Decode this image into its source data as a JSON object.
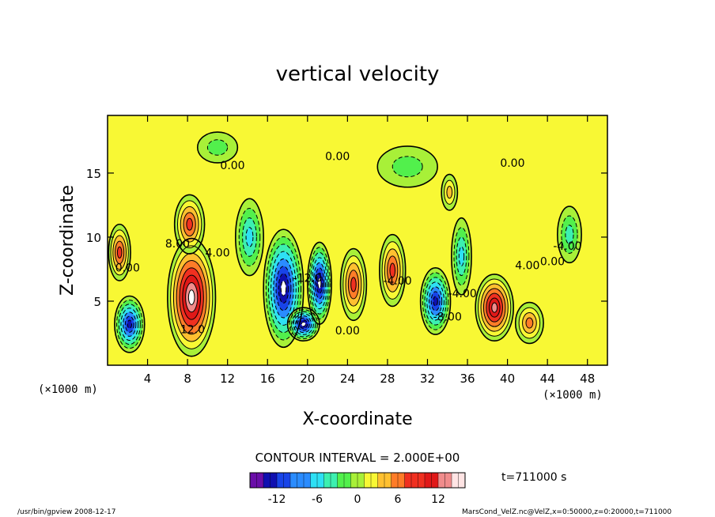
{
  "chart_data": {
    "type": "heatmap",
    "title": "vertical velocity",
    "xlabel": "X-coordinate",
    "ylabel": "Z-coordinate",
    "x_unit_note": "(×1000 m)",
    "x_unit_note_right": "(×1000 m)",
    "xlim": [
      0,
      50
    ],
    "ylim": [
      0,
      19.5
    ],
    "xticks": [
      4,
      8,
      12,
      16,
      20,
      24,
      28,
      32,
      36,
      40,
      44,
      48
    ],
    "yticks": [
      5,
      10,
      15
    ],
    "contour_interval_text": "CONTOUR INTERVAL = 2.000E+00",
    "contour_labels": [
      {
        "text": "0.00",
        "x": 2.0,
        "y": 7.3
      },
      {
        "text": "8.00",
        "x": 7.0,
        "y": 9.2
      },
      {
        "text": "4.00",
        "x": 11.0,
        "y": 8.5
      },
      {
        "text": "12.0",
        "x": 8.5,
        "y": 2.5
      },
      {
        "text": "0.00",
        "x": 12.5,
        "y": 15.3
      },
      {
        "text": "-12.0",
        "x": 20.0,
        "y": 6.5
      },
      {
        "text": "0.00",
        "x": 23.0,
        "y": 16.0
      },
      {
        "text": "0.00",
        "x": 24.0,
        "y": 2.4
      },
      {
        "text": "-4.00",
        "x": 29.0,
        "y": 6.3
      },
      {
        "text": "-8.00",
        "x": 34.0,
        "y": 3.5
      },
      {
        "text": "-4.00",
        "x": 35.5,
        "y": 5.3
      },
      {
        "text": "0.00",
        "x": 40.5,
        "y": 15.5
      },
      {
        "text": "4.00",
        "x": 42.0,
        "y": 7.5
      },
      {
        "text": "0.00",
        "x": 44.5,
        "y": 7.8
      },
      {
        "text": "-4.00",
        "x": 46.0,
        "y": 9.0
      }
    ],
    "features": [
      {
        "x": 1.2,
        "y": 8.8,
        "value": 8,
        "rx": 1.1,
        "ry": 2.2
      },
      {
        "x": 2.2,
        "y": 3.2,
        "value": -13,
        "rx": 1.5,
        "ry": 2.2
      },
      {
        "x": 8.4,
        "y": 5.3,
        "value": 15,
        "rx": 2.4,
        "ry": 4.6
      },
      {
        "x": 8.2,
        "y": 11.0,
        "value": 8,
        "rx": 1.5,
        "ry": 2.3
      },
      {
        "x": 17.6,
        "y": 6.0,
        "value": -14,
        "rx": 2.0,
        "ry": 4.6
      },
      {
        "x": 21.2,
        "y": 6.4,
        "value": -14,
        "rx": 1.2,
        "ry": 3.2
      },
      {
        "x": 19.6,
        "y": 3.2,
        "value": -14,
        "rx": 1.6,
        "ry": 1.3
      },
      {
        "x": 24.6,
        "y": 6.3,
        "value": 9,
        "rx": 1.3,
        "ry": 2.8
      },
      {
        "x": 28.5,
        "y": 7.4,
        "value": 9,
        "rx": 1.3,
        "ry": 2.8
      },
      {
        "x": 32.8,
        "y": 5.0,
        "value": -13,
        "rx": 1.5,
        "ry": 2.6
      },
      {
        "x": 35.4,
        "y": 8.5,
        "value": -6,
        "rx": 1.0,
        "ry": 3.0
      },
      {
        "x": 38.7,
        "y": 4.5,
        "value": 12,
        "rx": 1.9,
        "ry": 2.6
      },
      {
        "x": 42.2,
        "y": 3.3,
        "value": 7,
        "rx": 1.4,
        "ry": 1.6
      },
      {
        "x": 46.2,
        "y": 10.2,
        "value": -5,
        "rx": 1.2,
        "ry": 2.2
      },
      {
        "x": 14.2,
        "y": 10.0,
        "value": -6,
        "rx": 1.4,
        "ry": 3.0
      },
      {
        "x": 34.2,
        "y": 13.5,
        "value": 4,
        "rx": 0.8,
        "ry": 1.4
      },
      {
        "x": 11.0,
        "y": 17.0,
        "value": -3,
        "rx": 2.0,
        "ry": 1.2
      },
      {
        "x": 30.0,
        "y": 15.5,
        "value": -2,
        "rx": 3.0,
        "ry": 1.6
      }
    ],
    "colorbar": {
      "vmin": -16,
      "vmax": 16,
      "ticks": [
        -12,
        -6,
        0,
        6,
        12
      ],
      "colors": [
        "#6a0ea8",
        "#1010b0",
        "#1844e8",
        "#2a8cff",
        "#2ee0f4",
        "#3cf0b0",
        "#52f04c",
        "#a8f038",
        "#f8f834",
        "#ffc030",
        "#ff7c28",
        "#f03020",
        "#e01818",
        "#f08c8c",
        "#ffe4e4"
      ]
    }
  },
  "annotations": {
    "time_label": "t=711000 s",
    "footer_left": "/usr/bin/gpview   2008-12-17",
    "footer_right": "MarsCond_VelZ.nc@VelZ,x=0:50000,z=0:20000,t=711000"
  }
}
